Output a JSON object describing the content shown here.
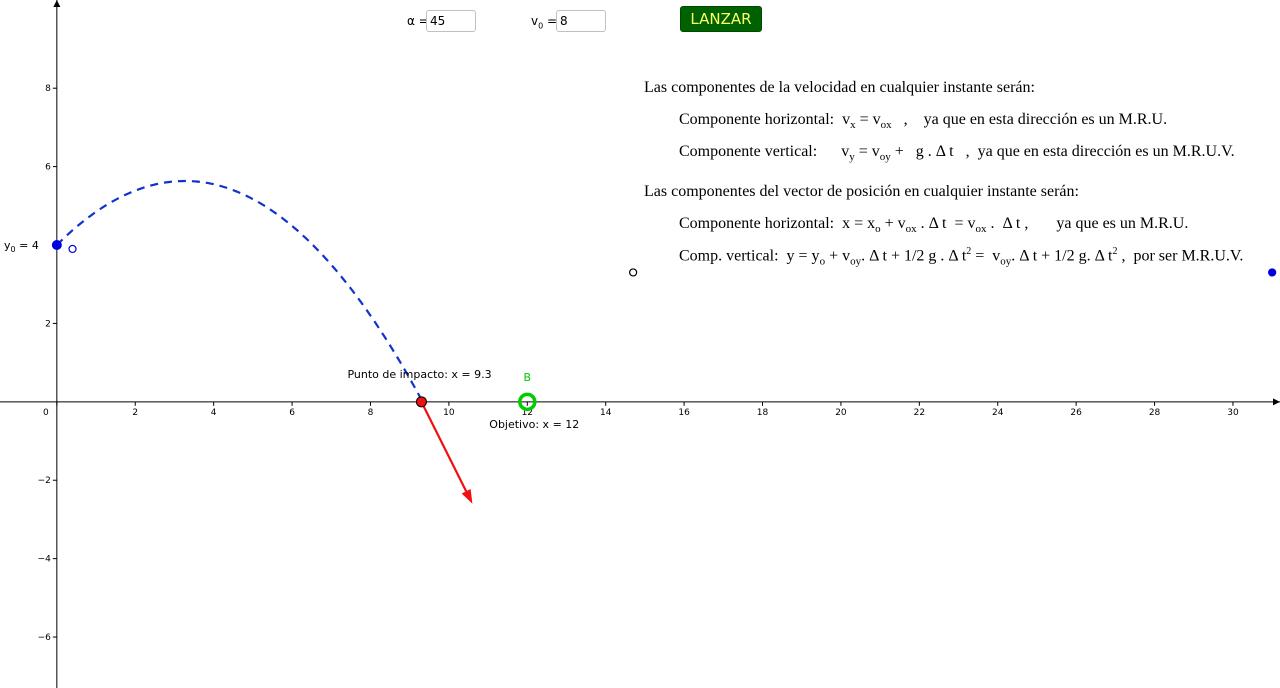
{
  "controls": {
    "alpha_label": "α =",
    "alpha_value": "45",
    "v0_label": "v",
    "v0_sub": "0",
    "v0_eq": "=",
    "v0_value": "8",
    "launch_label": "LANZAR"
  },
  "text": {
    "vel_heading": "Las componentes de la velocidad en cualquier instante serán:",
    "pos_heading": "Las componentes del vector de posición en cualquier instante serán:",
    "vel_h_prefix": "Componente horizontal:",
    "vel_v_prefix": "Componente vertical:",
    "pos_h_prefix": "Componente horizontal:",
    "pos_v_prefix": "Comp. vertical:"
  },
  "graph": {
    "y0_label": "y",
    "y0_sub": "0",
    "y0_value": "= 4",
    "impact_label": "Punto de impacto: x = 9.3",
    "target_label": "Objetivo: x = 12",
    "target_point_label": "B",
    "colors": {
      "trajectory": "#1133cc",
      "impact": "#ee1111",
      "target": "#00cc00",
      "launch_point": "#0000dd",
      "axis": "#000000"
    }
  },
  "chart_data": {
    "type": "scatter",
    "x_ticks": [
      0,
      2,
      4,
      6,
      8,
      10,
      12,
      14,
      16,
      18,
      20,
      22,
      24,
      26,
      28,
      30
    ],
    "y_ticks": [
      -6,
      -4,
      -2,
      2,
      4,
      6,
      8
    ],
    "y_tick_labels": [
      "−6",
      "−4",
      "−2",
      "2",
      "4",
      "6",
      "8"
    ],
    "xlim": [
      -1.45,
      31.2
    ],
    "ylim": [
      -7.3,
      10.25
    ],
    "launch": {
      "x": 0,
      "y": 4,
      "angle_deg": 45,
      "v0": 8,
      "g": 9.8
    },
    "impact_x": 9.3,
    "target_x": 12,
    "velocity_arrow": {
      "from": [
        9.3,
        0
      ],
      "to": [
        10.6,
        -2.6
      ]
    },
    "extra_points": [
      {
        "name": "open-point-near-launch",
        "x": 0.4,
        "y": 3.9,
        "filled": false
      },
      {
        "name": "open-point-mid",
        "x": 14.7,
        "y": 3.3,
        "filled": false
      },
      {
        "name": "filled-point-right",
        "x": 31.0,
        "y": 3.3,
        "filled": true
      }
    ]
  }
}
